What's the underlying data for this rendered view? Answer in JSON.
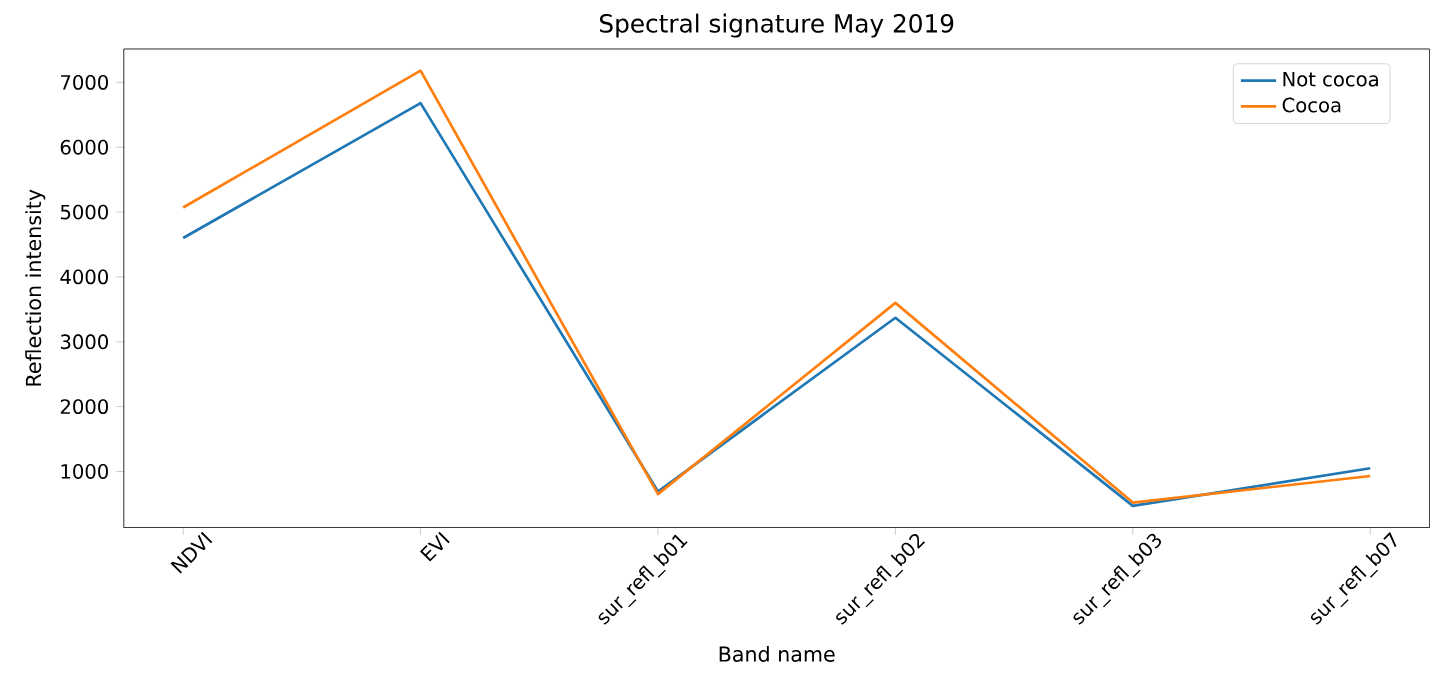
{
  "chart_data": {
    "type": "line",
    "title": "Spectral signature May 2019",
    "xlabel": "Band name",
    "ylabel": "Reflection intensity",
    "categories": [
      "NDVI",
      "EVI",
      "sur_refl_b01",
      "sur_refl_b02",
      "sur_refl_b03",
      "sur_refl_b07"
    ],
    "series": [
      {
        "name": "Not cocoa",
        "color": "#1f77b4",
        "values": [
          4600,
          6680,
          690,
          3370,
          470,
          1050
        ]
      },
      {
        "name": "Cocoa",
        "color": "#ff7f0e",
        "values": [
          5070,
          7180,
          650,
          3600,
          520,
          930
        ]
      }
    ],
    "ylim": [
      135,
      7515
    ],
    "yticks": [
      1000,
      2000,
      3000,
      4000,
      5000,
      6000,
      7000
    ],
    "legend": "top right",
    "grid": false,
    "marker": "none",
    "line_style": "solid"
  }
}
